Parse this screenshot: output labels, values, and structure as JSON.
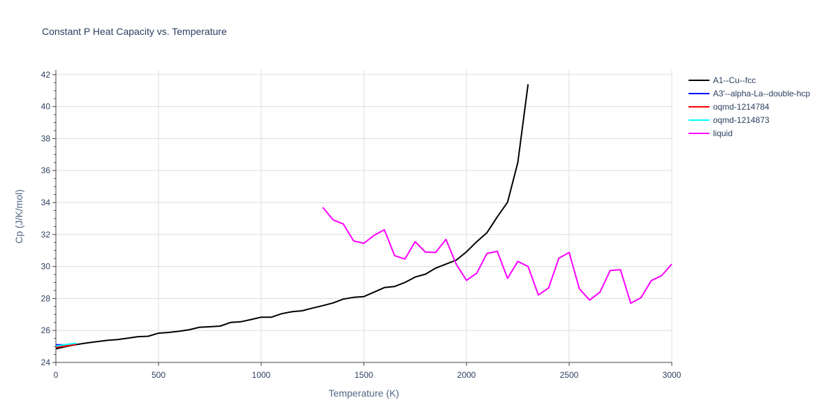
{
  "chart_data": {
    "type": "line",
    "title": "Constant P Heat Capacity vs. Temperature",
    "xlabel": "Temperature (K)",
    "ylabel": "Cp (J/K/mol)",
    "xlim": [
      0,
      3000
    ],
    "ylim": [
      24,
      42.3
    ],
    "x_ticks": [
      0,
      500,
      1000,
      1500,
      2000,
      2500,
      3000
    ],
    "x_tick_labels": [
      "0",
      "500",
      "1000",
      "1500",
      "2000",
      "2500",
      "3000"
    ],
    "y_ticks": [
      24,
      26,
      28,
      30,
      32,
      34,
      36,
      38,
      40,
      42
    ],
    "y_tick_labels": [
      "24",
      "26",
      "28",
      "30",
      "32",
      "34",
      "36",
      "38",
      "40",
      "42"
    ],
    "grid": true,
    "legend_position": "top-right, outside plot",
    "series": [
      {
        "name": "A1--Cu--fcc",
        "color": "#000000",
        "x": [
          0,
          50,
          100,
          150,
          200,
          250,
          300,
          350,
          400,
          450,
          500,
          550,
          600,
          650,
          700,
          750,
          800,
          850,
          900,
          950,
          1000,
          1050,
          1100,
          1150,
          1200,
          1250,
          1300,
          1350,
          1400,
          1450,
          1500,
          1550,
          1600,
          1650,
          1700,
          1750,
          1800,
          1850,
          1900,
          1950,
          2000,
          2050,
          2100,
          2150,
          2200,
          2250,
          2300
        ],
        "y": [
          24.85,
          25.0,
          25.12,
          25.22,
          25.3,
          25.38,
          25.43,
          25.52,
          25.61,
          25.64,
          25.83,
          25.88,
          25.95,
          26.05,
          26.2,
          26.23,
          26.27,
          26.5,
          26.54,
          26.68,
          26.83,
          26.83,
          27.05,
          27.17,
          27.23,
          27.4,
          27.55,
          27.72,
          27.96,
          28.07,
          28.12,
          28.4,
          28.68,
          28.75,
          29.0,
          29.34,
          29.52,
          29.9,
          30.15,
          30.4,
          30.92,
          31.55,
          32.12,
          33.1,
          34.02,
          36.5,
          41.4
        ]
      },
      {
        "name": "A3'--alpha-La--double-hcp",
        "color": "#0000ff",
        "x": [
          0,
          100
        ],
        "y": [
          25.1,
          25.1
        ]
      },
      {
        "name": "oqmd-1214784",
        "color": "#ff0000",
        "x": [
          0,
          100
        ],
        "y": [
          24.95,
          25.12
        ]
      },
      {
        "name": "oqmd-1214873",
        "color": "#00ffff",
        "x": [
          0,
          50,
          100
        ],
        "y": [
          25.02,
          25.12,
          25.2
        ]
      },
      {
        "name": "liquid",
        "color": "#ff00ff",
        "x": [
          1300,
          1350,
          1400,
          1450,
          1500,
          1550,
          1600,
          1650,
          1700,
          1750,
          1800,
          1850,
          1900,
          1950,
          2000,
          2050,
          2100,
          2150,
          2200,
          2250,
          2300,
          2350,
          2400,
          2450,
          2500,
          2550,
          2600,
          2650,
          2700,
          2750,
          2800,
          2850,
          2900,
          2950,
          3000
        ],
        "y": [
          33.7,
          32.92,
          32.66,
          31.6,
          31.45,
          31.95,
          32.3,
          30.68,
          30.47,
          31.55,
          30.9,
          30.88,
          31.7,
          30.15,
          29.13,
          29.58,
          30.82,
          30.95,
          29.26,
          30.32,
          30.0,
          28.22,
          28.66,
          30.52,
          30.88,
          28.6,
          27.9,
          28.4,
          29.75,
          29.8,
          27.7,
          28.05,
          29.12,
          29.42,
          30.15
        ]
      }
    ]
  }
}
